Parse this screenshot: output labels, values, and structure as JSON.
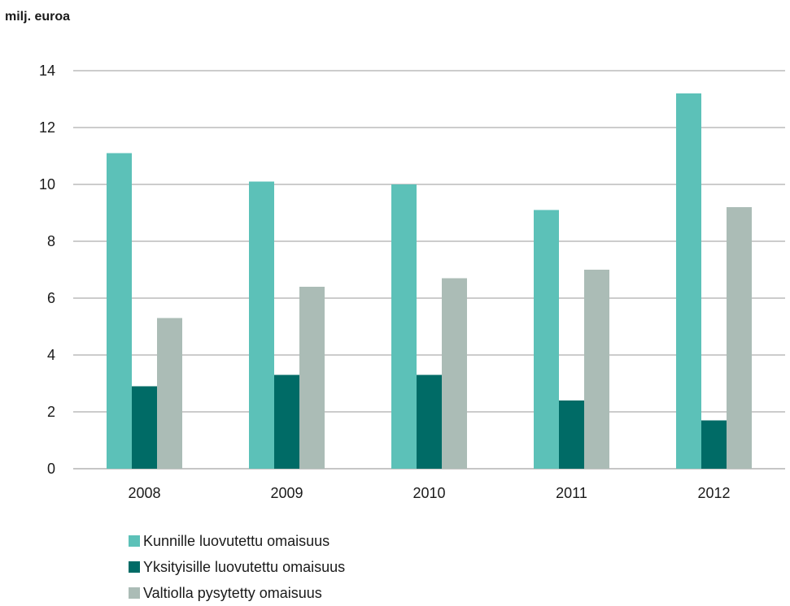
{
  "unit_label": "milj. euroa",
  "colors": {
    "grid": "#9a9a9a",
    "axis": "#8c8c8c"
  },
  "chart_data": {
    "type": "bar",
    "categories": [
      "2008",
      "2009",
      "2010",
      "2011",
      "2012"
    ],
    "ylabel": "milj. euroa",
    "ylim": [
      0,
      14
    ],
    "yticks": [
      0,
      2,
      4,
      6,
      8,
      10,
      12,
      14
    ],
    "grid": true,
    "legend_position": "bottom-left",
    "series": [
      {
        "name": "Kunnille luovutettu omaisuus",
        "color": "#5cc1b8",
        "values": [
          11.1,
          10.1,
          10.0,
          9.1,
          13.2
        ]
      },
      {
        "name": "Yksityisille luovutettu omaisuus",
        "color": "#006b66",
        "values": [
          2.9,
          3.3,
          3.3,
          2.4,
          1.7
        ]
      },
      {
        "name": "Valtiolla pysytetty omaisuus",
        "color": "#abbcb6",
        "values": [
          5.3,
          6.4,
          6.7,
          7.0,
          9.2
        ]
      }
    ]
  }
}
